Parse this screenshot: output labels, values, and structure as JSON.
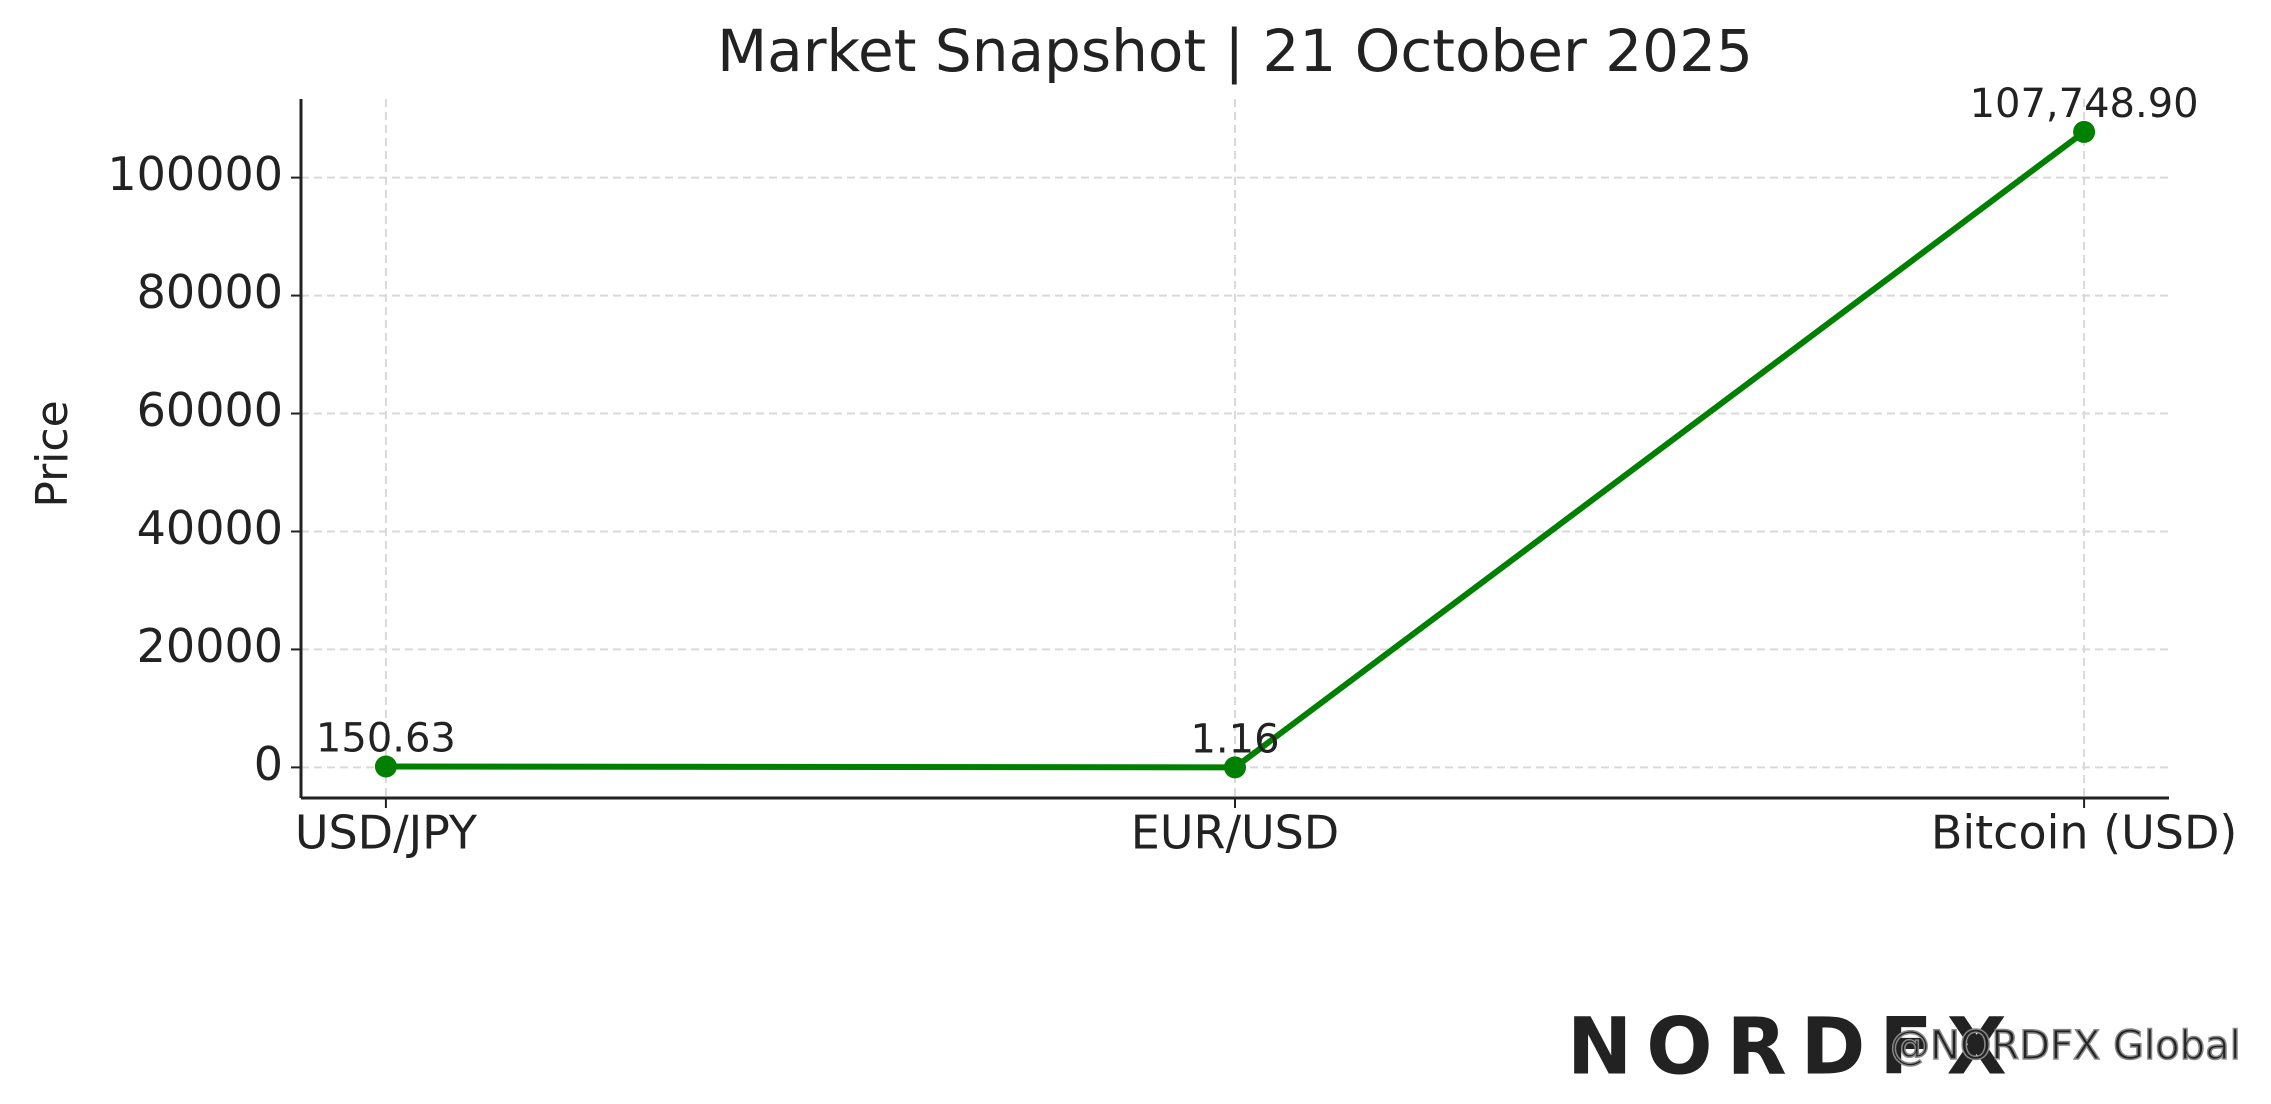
{
  "chart_data": {
    "type": "line",
    "title": "Market Snapshot | 21 October 2025",
    "y_label": "Price",
    "categories": [
      "USD/JPY",
      "EUR/USD",
      "Bitcoin (USD)"
    ],
    "series": [
      {
        "name": "Price",
        "color": "#008000",
        "values": [
          150.63,
          1.16,
          107748.9
        ],
        "value_labels": [
          "150.63",
          "1.16",
          "107,748.90"
        ]
      }
    ],
    "ylim": [
      -5190,
      113330
    ],
    "yticks": [
      0,
      20000,
      40000,
      60000,
      80000,
      100000
    ],
    "grid": true,
    "legend": false
  },
  "watermark": {
    "logo": "NORDFX",
    "handle": "@NORDFX Global"
  }
}
